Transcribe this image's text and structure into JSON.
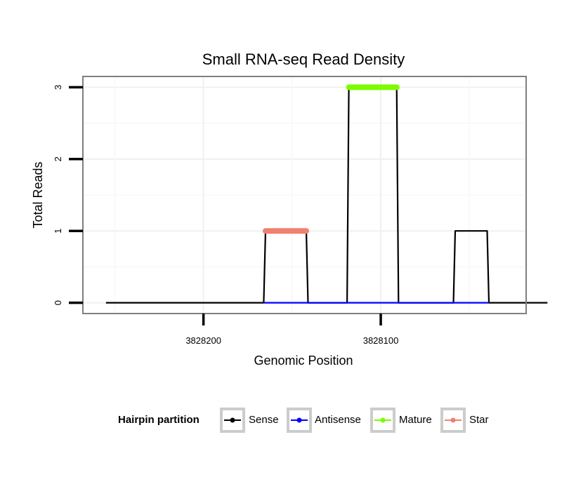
{
  "chart_data": {
    "type": "line",
    "title": "Small RNA-seq Read Density",
    "xlabel": "Genomic Position",
    "ylabel": "Total Reads",
    "x_reversed": true,
    "xlim": [
      3828268,
      3828018
    ],
    "ylim": [
      -0.15,
      3.15
    ],
    "x_ticks": [
      3828200,
      3828100
    ],
    "x_tick_labels": [
      "3828200",
      "3828100"
    ],
    "y_ticks": [
      0,
      1,
      2,
      3
    ],
    "y_tick_labels": [
      "0",
      "1",
      "2",
      "3"
    ],
    "grid": true,
    "legend": {
      "title": "Hairpin partition",
      "position": "bottom",
      "entries": [
        "Sense",
        "Antisense",
        "Mature",
        "Star"
      ]
    },
    "series": [
      {
        "name": "Sense",
        "color": "#000000",
        "style": "line",
        "x": [
          3828255,
          3828166,
          3828165,
          3828142,
          3828141,
          3828119,
          3828118,
          3828091,
          3828090,
          3828059,
          3828058,
          3828040,
          3828039,
          3828006
        ],
        "values": [
          0,
          0,
          1,
          1,
          0,
          0,
          3,
          3,
          0,
          0,
          1,
          1,
          0,
          0
        ]
      },
      {
        "name": "Antisense",
        "color": "#0000ff",
        "style": "line",
        "x": [
          3828166,
          3828141,
          3828119,
          3828090,
          3828059,
          3828039
        ],
        "values": [
          0,
          0,
          0,
          0,
          0,
          0
        ]
      },
      {
        "name": "Mature",
        "color": "#7cfc00",
        "style": "thick",
        "x": [
          3828118,
          3828091
        ],
        "values": [
          3,
          3
        ]
      },
      {
        "name": "Star",
        "color": "#f08070",
        "style": "thick",
        "x": [
          3828165,
          3828142
        ],
        "values": [
          1,
          1
        ]
      }
    ]
  }
}
